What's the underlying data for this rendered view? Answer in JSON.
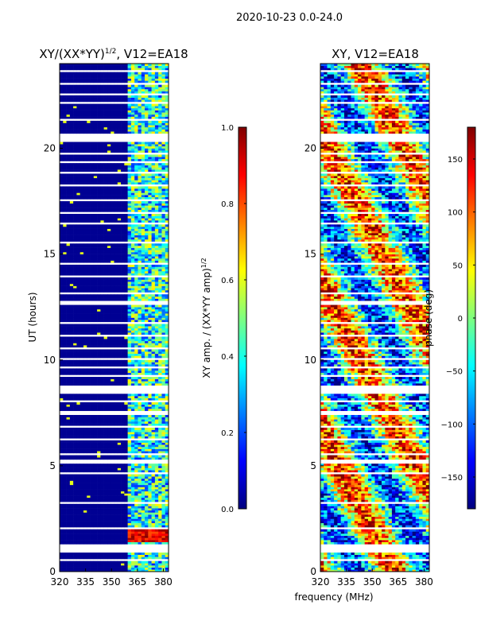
{
  "suptitle": "2020-10-23 0.0-24.0",
  "palette": {
    "jet": [
      "#00007f",
      "#0000ff",
      "#007fff",
      "#00ffff",
      "#7fff7f",
      "#ffff00",
      "#ff7f00",
      "#ff0000",
      "#7f0000"
    ],
    "background": "#ffffff",
    "gap": "#ffffff"
  },
  "chart_data": [
    {
      "type": "heatmap",
      "title_main": "XY/(XX*YY)",
      "title_exp": "1/2",
      "title_rest": ", V12=EA18",
      "xlabel": "",
      "ylabel": "UT (hours)",
      "xlim": [
        320,
        383
      ],
      "ylim": [
        0,
        24
      ],
      "xticks": [
        320,
        335,
        350,
        365,
        380
      ],
      "yticks": [
        0,
        5,
        10,
        15,
        20
      ],
      "colorbar": {
        "label_main": "XY amp. / (XX*YY amp)",
        "label_exp": "1/2",
        "range": [
          0.0,
          1.0
        ],
        "ticks": [
          "0.0",
          "0.2",
          "0.4",
          "0.6",
          "0.8",
          "1.0"
        ],
        "tick_values": [
          0.0,
          0.2,
          0.4,
          0.6,
          0.8,
          1.0
        ]
      },
      "description_of_values": "mostly near 0 below 360 MHz; scattered 0.2-0.6 between 360-380 MHz; high (~0.8-1.0) bursts near 1.5-2 UT"
    },
    {
      "type": "heatmap",
      "title_main": "XY, V12=EA18",
      "xlabel": "frequency (MHz)",
      "ylabel": "",
      "xlim": [
        320,
        383
      ],
      "ylim": [
        0,
        24
      ],
      "xticks": [
        320,
        335,
        350,
        365,
        380
      ],
      "yticks": [
        0,
        5,
        10,
        15,
        20
      ],
      "colorbar": {
        "label_main": "phase (deg)",
        "range": [
          -180,
          180
        ],
        "ticks": [
          "150",
          "100",
          "50",
          "0",
          "−50",
          "−100",
          "−150"
        ],
        "tick_values": [
          150,
          100,
          50,
          0,
          -50,
          -100,
          -150
        ]
      },
      "description_of_values": "phase values spanning -180 to 180 deg, noisy across band"
    }
  ],
  "gaps_ut": [
    [
      0.5,
      0.6
    ],
    [
      0.9,
      1.3
    ],
    [
      2.05,
      2.12
    ],
    [
      3.2,
      3.3
    ],
    [
      4.6,
      4.68
    ],
    [
      5.15,
      5.25
    ],
    [
      5.5,
      5.55
    ],
    [
      6.2,
      6.25
    ],
    [
      6.8,
      6.85
    ],
    [
      7.45,
      7.55
    ],
    [
      8.0,
      8.05
    ],
    [
      8.4,
      8.75
    ],
    [
      9.2,
      9.28
    ],
    [
      9.6,
      9.65
    ],
    [
      10.05,
      10.1
    ],
    [
      10.5,
      10.55
    ],
    [
      11.1,
      11.15
    ],
    [
      11.7,
      11.75
    ],
    [
      12.6,
      12.75
    ],
    [
      13.1,
      13.15
    ],
    [
      13.9,
      13.95
    ],
    [
      14.5,
      14.55
    ],
    [
      15.5,
      15.55
    ],
    [
      16.45,
      16.5
    ],
    [
      16.95,
      17.0
    ],
    [
      17.55,
      17.6
    ],
    [
      18.2,
      18.25
    ],
    [
      18.8,
      18.85
    ],
    [
      19.3,
      19.35
    ],
    [
      19.7,
      19.75
    ],
    [
      20.35,
      20.65
    ],
    [
      21.3,
      21.35
    ],
    [
      22.1,
      22.15
    ],
    [
      22.5,
      22.55
    ],
    [
      23.0,
      23.05
    ],
    [
      23.6,
      23.65
    ]
  ]
}
